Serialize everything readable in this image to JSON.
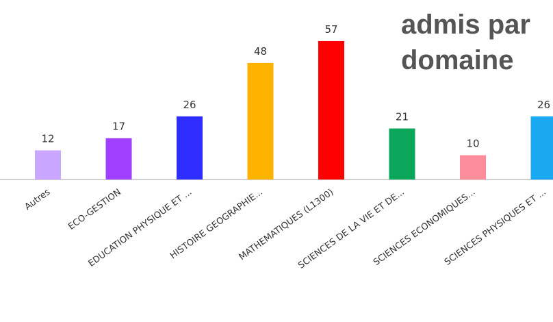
{
  "chart_data": {
    "type": "bar",
    "title": "admis par domaine",
    "categories": [
      "Autres",
      "ECO-GESTION",
      "EDUCATION PHYSIQUE ET ...",
      "HISTOIRE GEOGRAPHIE...",
      "MATHEMATIQUES (L1300)",
      "SCIENCES DE LA VIE ET DE...",
      "SCIENCES ECONOMIQUES...",
      "SCIENCES PHYSIQUES ET ..."
    ],
    "values": [
      12,
      17,
      26,
      48,
      57,
      21,
      10,
      26
    ],
    "colors": [
      "#c9a6ff",
      "#a040ff",
      "#2d2dff",
      "#ffb300",
      "#ff0000",
      "#0aa65a",
      "#ff8c9a",
      "#1aa8f0"
    ],
    "ylim": [
      0,
      60
    ],
    "xlabel": "",
    "ylabel": "",
    "grid": false,
    "legend": "none"
  }
}
